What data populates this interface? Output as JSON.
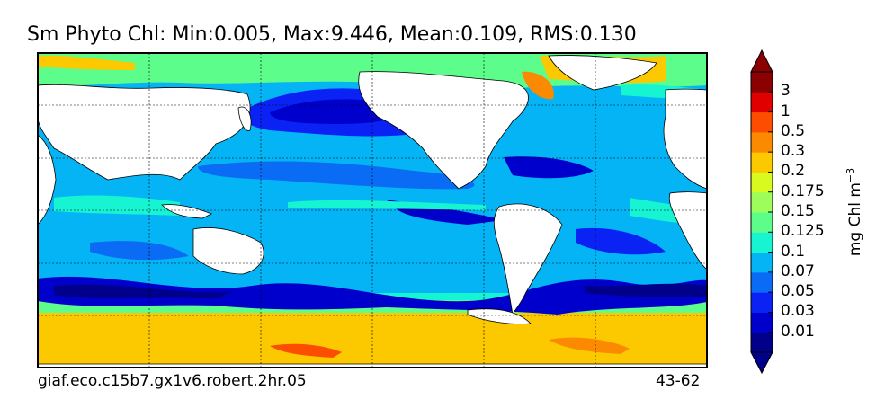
{
  "title": "Sm Phyto Chl: Min:0.005, Max:9.446, Mean:0.109, RMS:0.130",
  "footer": {
    "run_name": "giaf.eco.c15b7.gx1v6.robert.2hr.05",
    "years": "43-62"
  },
  "colorbar": {
    "units": "mg Chl m",
    "units_exponent": "−3",
    "ticks": [
      "3",
      "1",
      "0.5",
      "0.3",
      "0.2",
      "0.175",
      "0.15",
      "0.125",
      "0.1",
      "0.07",
      "0.05",
      "0.03",
      "0.01"
    ],
    "colors": [
      "#00008b",
      "#0000cd",
      "#0b22f5",
      "#0a6cf5",
      "#05b4f5",
      "#16f4d2",
      "#5dfd8c",
      "#9dfd5a",
      "#d8fa1e",
      "#fcc800",
      "#fc8a00",
      "#fc4d00",
      "#e00000",
      "#8b0000"
    ],
    "extend": "both"
  },
  "colors": {
    "land": "#ffffff",
    "frame": "#000000"
  }
}
